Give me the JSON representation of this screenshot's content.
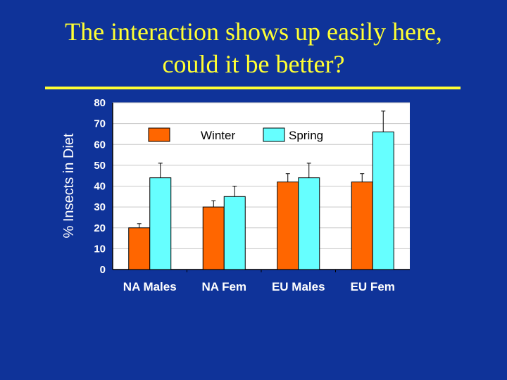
{
  "slide": {
    "title_line1": "The interaction shows up easily here,",
    "title_line2": "could it be better?"
  },
  "colors": {
    "background": "#0f3399",
    "title": "#ffff33",
    "winter": "#ff6600",
    "spring": "#66ffff"
  },
  "chart_data": {
    "type": "bar",
    "title": "",
    "xlabel": "",
    "ylabel": "% Insects in Diet",
    "ylim": [
      0,
      80
    ],
    "yticks": [
      0,
      10,
      20,
      30,
      40,
      50,
      60,
      70,
      80
    ],
    "grid": true,
    "legend": "top",
    "categories": [
      "NA Males",
      "NA Fem",
      "EU Males",
      "EU Fem"
    ],
    "series": [
      {
        "name": "Winter",
        "color": "#ff6600",
        "values": [
          20,
          30,
          42,
          42
        ],
        "errors": [
          2,
          3,
          4,
          4
        ]
      },
      {
        "name": "Spring",
        "color": "#66ffff",
        "values": [
          44,
          35,
          44,
          66
        ],
        "errors": [
          7,
          5,
          7,
          10
        ]
      }
    ]
  }
}
